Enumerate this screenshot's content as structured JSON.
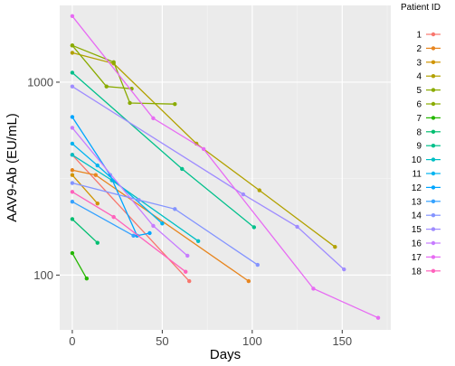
{
  "chart_data": {
    "type": "line",
    "xlabel": "Days",
    "ylabel": "AAV9-Ab (EU/mL)",
    "y_scale": "log",
    "xlim": [
      -7,
      177
    ],
    "ylim": [
      52,
      2500
    ],
    "x_ticks": [
      0,
      50,
      100,
      150
    ],
    "x_tick_labels": [
      "0",
      "50",
      "100",
      "150"
    ],
    "y_ticks": [
      100,
      1000
    ],
    "y_tick_labels": [
      "100",
      "1000"
    ],
    "grid": true,
    "legend_title": "Patient ID",
    "legend_position": "right",
    "series": [
      {
        "name": "1",
        "color": "#F8766D",
        "points": [
          [
            0,
            420
          ],
          [
            65,
            93
          ]
        ]
      },
      {
        "name": "2",
        "color": "#E7851E",
        "points": [
          [
            0,
            350
          ],
          [
            13,
            330
          ],
          [
            98,
            93
          ]
        ]
      },
      {
        "name": "3",
        "color": "#D09400",
        "points": [
          [
            0,
            330
          ],
          [
            14,
            235
          ]
        ]
      },
      {
        "name": "4",
        "color": "#B2A100",
        "points": [
          [
            0,
            1420
          ],
          [
            23,
            1250
          ],
          [
            69,
            480
          ],
          [
            104,
            275
          ],
          [
            146,
            140
          ]
        ]
      },
      {
        "name": "5",
        "color": "#8AAB00",
        "points": [
          [
            0,
            1550
          ],
          [
            19,
            950
          ],
          [
            33,
            925
          ]
        ]
      },
      {
        "name": "6",
        "color": "#8AAB00",
        "points": [
          [
            0,
            1550
          ],
          [
            23,
            1270
          ],
          [
            32,
            780
          ],
          [
            57,
            770
          ]
        ]
      },
      {
        "name": "7",
        "color": "#24B700",
        "points": [
          [
            0,
            130
          ],
          [
            8,
            96
          ]
        ]
      },
      {
        "name": "8",
        "color": "#00BE70",
        "points": [
          [
            0,
            195
          ],
          [
            14,
            147
          ]
        ]
      },
      {
        "name": "9",
        "color": "#00C08B",
        "points": [
          [
            0,
            1120
          ],
          [
            61,
            355
          ],
          [
            101,
            177
          ]
        ]
      },
      {
        "name": "10",
        "color": "#00BFC4",
        "points": [
          [
            0,
            420
          ],
          [
            22,
            310
          ],
          [
            70,
            150
          ]
        ]
      },
      {
        "name": "11",
        "color": "#00B4F0",
        "points": [
          [
            0,
            480
          ],
          [
            14,
            370
          ],
          [
            50,
            185
          ]
        ]
      },
      {
        "name": "12",
        "color": "#00A5FF",
        "points": [
          [
            0,
            660
          ],
          [
            21,
            330
          ],
          [
            36,
            160
          ],
          [
            43,
            165
          ]
        ]
      },
      {
        "name": "13",
        "color": "#35A2FF",
        "points": [
          [
            0,
            240
          ],
          [
            34,
            160
          ]
        ]
      },
      {
        "name": "14",
        "color": "#8494FF",
        "points": [
          [
            0,
            300
          ],
          [
            37,
            245
          ],
          [
            57,
            220
          ],
          [
            103,
            113
          ]
        ]
      },
      {
        "name": "15",
        "color": "#9F8CFF",
        "points": [
          [
            0,
            950
          ],
          [
            95,
            262
          ],
          [
            125,
            178
          ],
          [
            151,
            107
          ]
        ]
      },
      {
        "name": "16",
        "color": "#C77CFF",
        "points": [
          [
            0,
            580
          ],
          [
            45,
            180
          ],
          [
            64,
            126
          ]
        ]
      },
      {
        "name": "17",
        "color": "#E76BF3",
        "points": [
          [
            0,
            2200
          ],
          [
            45,
            650
          ],
          [
            73,
            450
          ],
          [
            134,
            85
          ],
          [
            170,
            60
          ]
        ]
      },
      {
        "name": "18",
        "color": "#FF62BC",
        "points": [
          [
            0,
            270
          ],
          [
            23,
            200
          ],
          [
            63,
            104
          ]
        ]
      }
    ]
  }
}
